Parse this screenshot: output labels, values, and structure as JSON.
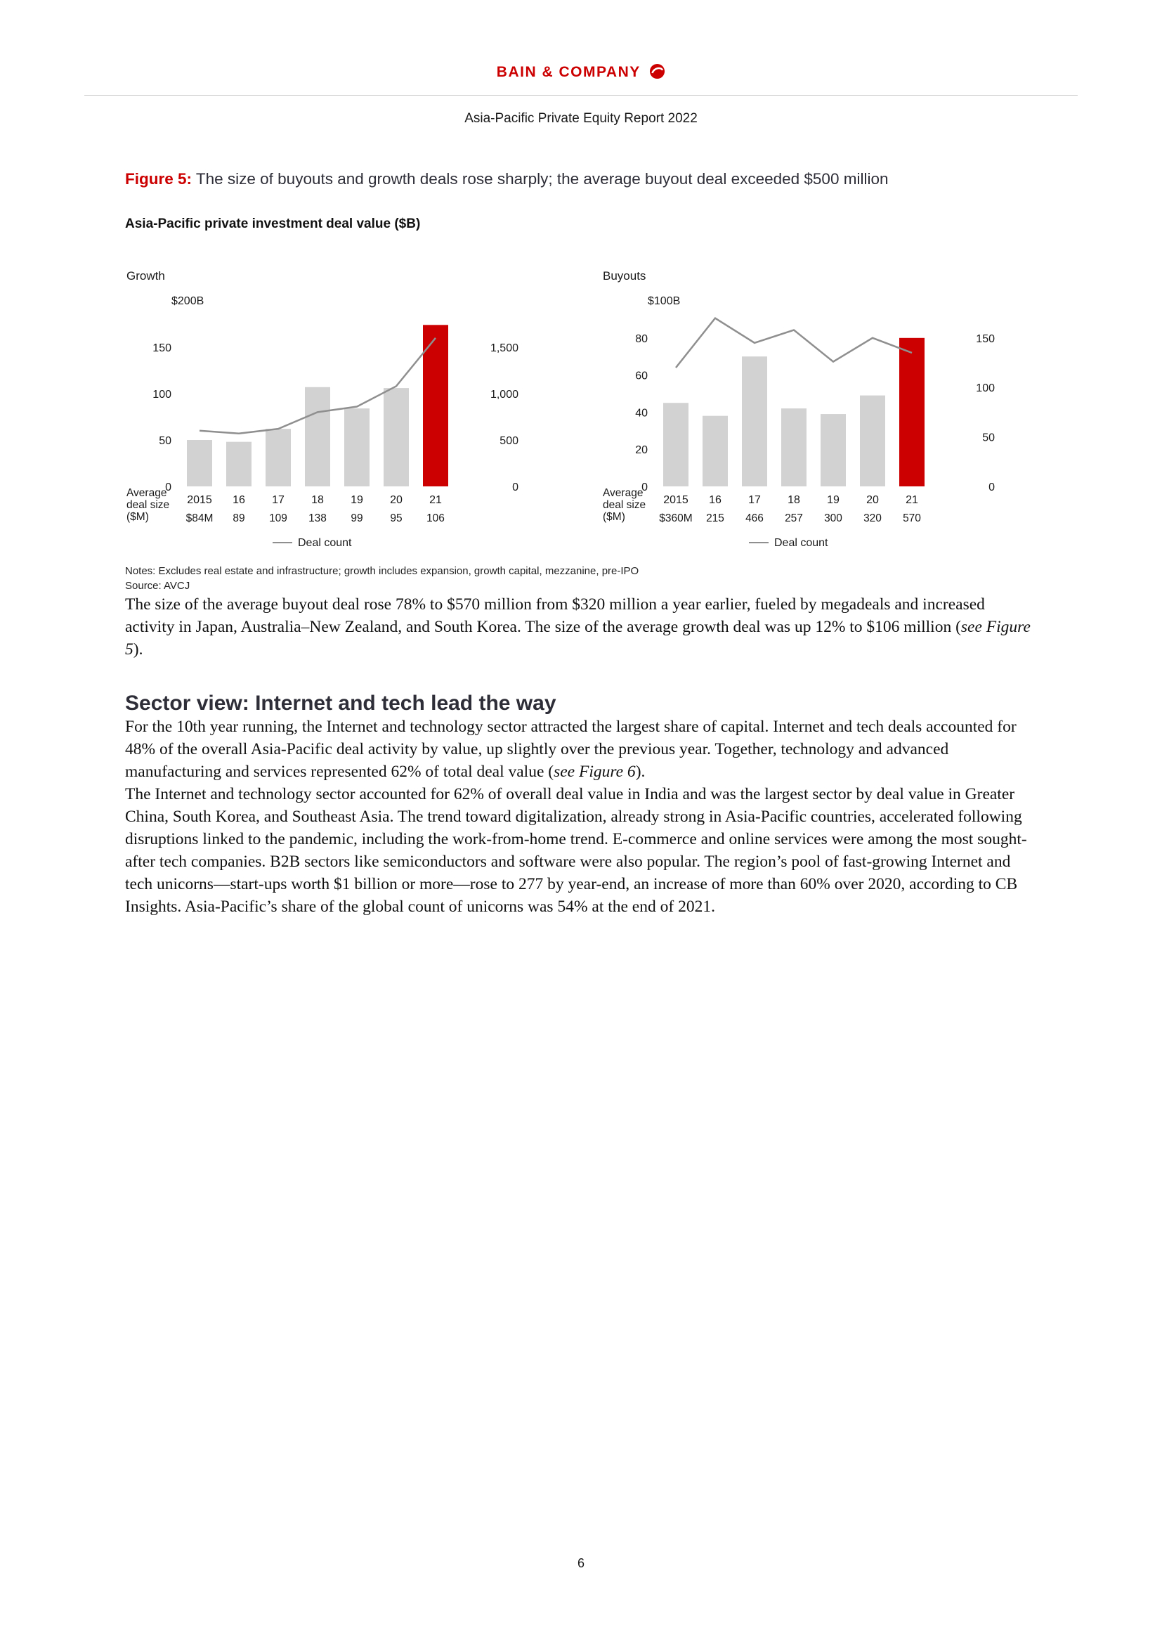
{
  "colors": {
    "accent_red": "#cc0000",
    "bar_gray": "#d2d2d3",
    "line_gray": "#8f8f8f",
    "heading_dark": "#2e2e38"
  },
  "header": {
    "logo_text": "BAIN & COMPANY",
    "report_title": "Asia-Pacific Private Equity Report 2022"
  },
  "figure": {
    "label": "Figure 5:",
    "caption": " The size of buyouts and growth deals rose sharply; the average buyout deal exceeded $500 million",
    "chart_title": "Asia-Pacific private investment deal value ($B)",
    "notes": "Notes: Excludes real estate and infrastructure; growth includes expansion, growth capital, mezzanine, pre-IPO",
    "source": "Source: AVCJ"
  },
  "chart_data": [
    {
      "type": "bar",
      "title": "Growth",
      "axis_top_label": "$200B",
      "categories": [
        "2015",
        "16",
        "17",
        "18",
        "19",
        "20",
        "21"
      ],
      "bar_values": [
        50,
        48,
        62,
        107,
        84,
        106,
        174
      ],
      "bar_colors": [
        "gray",
        "gray",
        "gray",
        "gray",
        "gray",
        "gray",
        "red"
      ],
      "left_ticks": [
        0,
        50,
        100,
        150
      ],
      "left_max": 200,
      "right_ticks": [
        0,
        500,
        1000,
        1500
      ],
      "right_max": 2000,
      "line_name": "Deal count",
      "line_values": [
        600,
        570,
        620,
        800,
        860,
        1080,
        1600
      ],
      "avg_label_lines": [
        "Average",
        "deal size",
        "($M)"
      ],
      "avg_values": [
        "$84M",
        "89",
        "109",
        "138",
        "99",
        "95",
        "106"
      ],
      "legend_label": "Deal count"
    },
    {
      "type": "bar",
      "title": "Buyouts",
      "axis_top_label": "$100B",
      "categories": [
        "2015",
        "16",
        "17",
        "18",
        "19",
        "20",
        "21"
      ],
      "bar_values": [
        45,
        38,
        70,
        42,
        39,
        49,
        80
      ],
      "bar_colors": [
        "gray",
        "gray",
        "gray",
        "gray",
        "gray",
        "gray",
        "red"
      ],
      "left_ticks": [
        0,
        20,
        40,
        60,
        80
      ],
      "left_max": 100,
      "right_ticks": [
        0,
        50,
        100,
        150
      ],
      "right_max": 187.5,
      "line_name": "Deal count",
      "line_values": [
        120,
        170,
        145,
        158,
        126,
        150,
        135
      ],
      "avg_label_lines": [
        "Average",
        "deal size",
        "($M)"
      ],
      "avg_values": [
        "$360M",
        "215",
        "466",
        "257",
        "300",
        "320",
        "570"
      ],
      "legend_label": "Deal count"
    }
  ],
  "body": {
    "p1": {
      "text_before": "The size of the average buyout deal rose 78% to $570 million from $320 million a year earlier, fueled by megadeals and increased activity in Japan, Australia–New Zealand, and South Korea. The size of the average growth deal was up 12% to $106 million (",
      "italic": "see Figure 5",
      "text_after": ")."
    },
    "section_heading": "Sector view: Internet and tech lead the way",
    "p2": {
      "text_before": "For the 10th year running, the Internet and technology sector attracted the largest share of capital. Internet and tech deals accounted for 48% of the overall Asia-Pacific deal activity by value, up slightly over the previous year. Together, technology and advanced manufacturing and services represented 62% of total deal value (",
      "italic": "see Figure 6",
      "text_after": ")."
    },
    "p3": {
      "text": "The Internet and technology sector accounted for 62% of overall deal value in India and was the largest sector by deal value in Greater China, South Korea, and Southeast Asia. The trend toward digitalization, already strong in Asia-Pacific countries, accelerated following disruptions linked to the pandemic, including the work-from-home trend. E-commerce and online services were among the most sought-after tech companies. B2B sectors like semiconductors and software were also popular. The region’s pool of fast-growing Internet and tech unicorns—start-ups worth $1 billion or more—rose to 277 by year-end, an increase of more than 60% over 2020, according to CB Insights. Asia-Pacific’s share of the global count of unicorns was 54% at the end of 2021."
    }
  },
  "footer": {
    "page_number": "6"
  }
}
